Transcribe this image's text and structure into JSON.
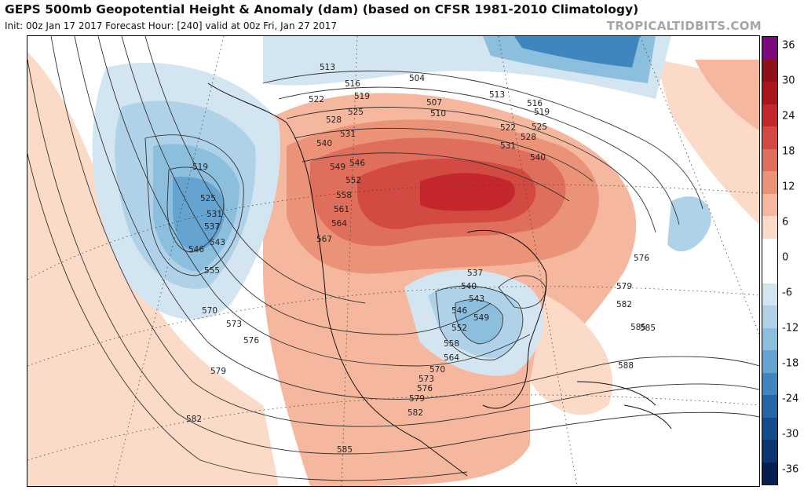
{
  "header": {
    "title": "GEPS 500mb Geopotential Height & Anomaly (dam) (based on CFSR 1981-2010 Climatology)",
    "subtitle": "Init: 00z Jan 17 2017   Forecast Hour: [240]   valid at 00z Fri, Jan 27 2017",
    "brand": "TROPICALTIDBITS.COM"
  },
  "colorbar": {
    "labels": [
      "36",
      "30",
      "24",
      "18",
      "12",
      "6",
      "0",
      "-6",
      "-12",
      "-18",
      "-24",
      "-30",
      "-36"
    ],
    "colors": [
      "#7a0a7d",
      "#8c1119",
      "#a8151d",
      "#c3262b",
      "#d24a42",
      "#df6e5c",
      "#eb9379",
      "#f5b89e",
      "#fbdac8",
      "#ffffff",
      "#ffffff",
      "#d3e5f1",
      "#b0d2e8",
      "#8cbedd",
      "#65a4d0",
      "#3f86c0",
      "#2466a8",
      "#144c8e",
      "#0b3672",
      "#071f50"
    ]
  },
  "contours": [
    {
      "label": "513"
    },
    {
      "label": "516"
    },
    {
      "label": "519"
    },
    {
      "label": "522"
    },
    {
      "label": "525"
    },
    {
      "label": "528"
    },
    {
      "label": "531"
    },
    {
      "label": "540"
    },
    {
      "label": "549"
    },
    {
      "label": "546"
    },
    {
      "label": "552"
    },
    {
      "label": "558"
    },
    {
      "label": "561"
    },
    {
      "label": "564"
    },
    {
      "label": "567"
    },
    {
      "label": "507"
    },
    {
      "label": "510"
    },
    {
      "label": "504"
    },
    {
      "label": "519"
    },
    {
      "label": "525"
    },
    {
      "label": "531"
    },
    {
      "label": "537"
    },
    {
      "label": "543"
    },
    {
      "label": "546"
    },
    {
      "label": "555"
    },
    {
      "label": "570"
    },
    {
      "label": "573"
    },
    {
      "label": "576"
    },
    {
      "label": "579"
    },
    {
      "label": "582"
    },
    {
      "label": "585"
    },
    {
      "label": "537"
    },
    {
      "label": "540"
    },
    {
      "label": "543"
    },
    {
      "label": "546"
    },
    {
      "label": "549"
    },
    {
      "label": "552"
    },
    {
      "label": "558"
    },
    {
      "label": "564"
    },
    {
      "label": "570"
    },
    {
      "label": "573"
    },
    {
      "label": "576"
    },
    {
      "label": "579"
    },
    {
      "label": "582"
    },
    {
      "label": "585"
    },
    {
      "label": "513"
    },
    {
      "label": "516"
    },
    {
      "label": "519"
    },
    {
      "label": "522"
    },
    {
      "label": "525"
    },
    {
      "label": "528"
    },
    {
      "label": "531"
    },
    {
      "label": "540"
    },
    {
      "label": "576"
    },
    {
      "label": "579"
    },
    {
      "label": "582"
    },
    {
      "label": "585"
    },
    {
      "label": "588"
    }
  ]
}
